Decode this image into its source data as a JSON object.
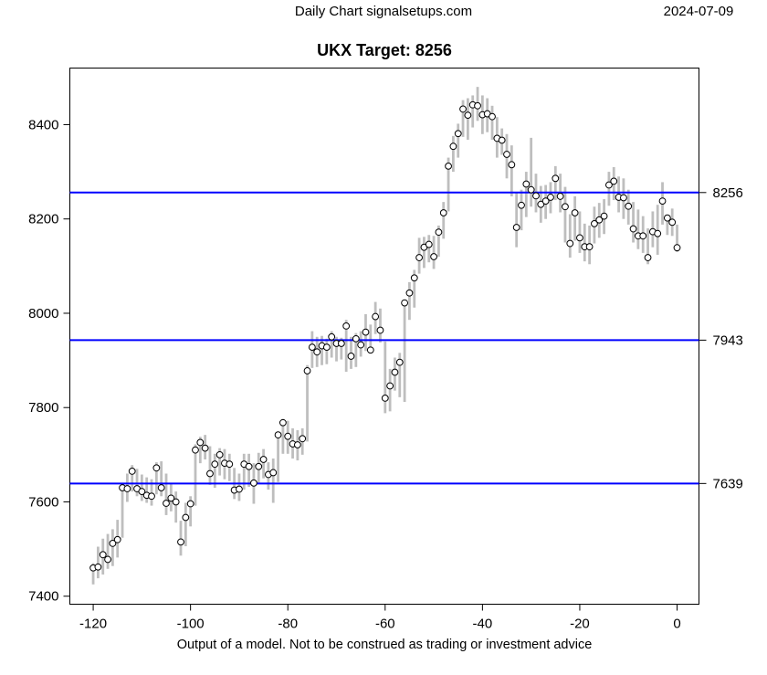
{
  "header": {
    "title": "Daily Chart signalsetups.com",
    "date": "2024-07-09"
  },
  "chart": {
    "title": "UKX Target: 8256",
    "instrument": "UKX",
    "target": "8256"
  },
  "caption": "Output of a model. Not to be construed as trading or investment advice",
  "colors": {
    "bar": "#bebebe",
    "target_line": "#0000ff",
    "marker_fill": "#ffffff",
    "marker_stroke": "#000000",
    "text": "#000000",
    "background": "#ffffff"
  },
  "chart_data": {
    "type": "bar",
    "subtype": "high-low-close-bars",
    "title": "UKX Target: 8256",
    "xlabel": "",
    "ylabel": "",
    "x_start": -120,
    "x_step": 1,
    "x_ticks": [
      -120,
      -100,
      -80,
      -60,
      -40,
      -20,
      0
    ],
    "y_ticks": [
      7400,
      7600,
      7800,
      8000,
      8200,
      8400
    ],
    "xlim": [
      -124.8,
      4.5
    ],
    "ylim": [
      7383,
      8520
    ],
    "grid": false,
    "legend": "none",
    "target_lines": [
      {
        "value": 8256,
        "label": "8256"
      },
      {
        "value": 7943,
        "label": "7943"
      },
      {
        "value": 7639,
        "label": "7639"
      }
    ],
    "series": [
      {
        "name": "high",
        "values": [
          7470,
          7505,
          7522,
          7532,
          7542,
          7562,
          7640,
          7660,
          7678,
          7670,
          7658,
          7652,
          7648,
          7684,
          7686,
          7660,
          7640,
          7622,
          7560,
          7598,
          7612,
          7722,
          7738,
          7742,
          7718,
          7702,
          7714,
          7712,
          7702,
          7672,
          7660,
          7702,
          7702,
          7682,
          7704,
          7712,
          7684,
          7692,
          7748,
          7776,
          7772,
          7756,
          7752,
          7756,
          7890,
          7962,
          7950,
          7952,
          7946,
          7962,
          7950,
          7948,
          7986,
          7950,
          7958,
          7962,
          7998,
          7976,
          8024,
          8010,
          7940,
          7882,
          7906,
          7916,
          8026,
          8066,
          8092,
          8160,
          8162,
          8166,
          8164,
          8186,
          8236,
          8330,
          8376,
          8402,
          8452,
          8456,
          8462,
          8480,
          8462,
          8456,
          8440,
          8416,
          8392,
          8380,
          8356,
          8256,
          8262,
          8300,
          8372,
          8296,
          8270,
          8272,
          8278,
          8312,
          8296,
          8268,
          8210,
          8248,
          8216,
          8190,
          8186,
          8226,
          8234,
          8242,
          8300,
          8310,
          8290,
          8286,
          8262,
          8236,
          8220,
          8206,
          8180,
          8216,
          8230,
          8278,
          8208,
          8222,
          8188
        ]
      },
      {
        "name": "low",
        "values": [
          7425,
          7438,
          7446,
          7458,
          7464,
          7482,
          7524,
          7600,
          7622,
          7612,
          7602,
          7598,
          7592,
          7616,
          7612,
          7572,
          7580,
          7556,
          7486,
          7506,
          7548,
          7592,
          7682,
          7690,
          7636,
          7630,
          7656,
          7648,
          7644,
          7606,
          7602,
          7626,
          7632,
          7596,
          7638,
          7650,
          7626,
          7598,
          7642,
          7702,
          7702,
          7692,
          7688,
          7700,
          7728,
          7884,
          7886,
          7890,
          7892,
          7906,
          7898,
          7902,
          7876,
          7882,
          7886,
          7908,
          7920,
          7918,
          7956,
          7938,
          7788,
          7792,
          7836,
          7822,
          7812,
          7986,
          8012,
          8084,
          8096,
          8108,
          8094,
          8120,
          8158,
          8216,
          8300,
          8330,
          8374,
          8368,
          8394,
          8408,
          8380,
          8384,
          8368,
          8330,
          8336,
          8286,
          8248,
          8140,
          8176,
          8204,
          8226,
          8214,
          8192,
          8200,
          8212,
          8240,
          8214,
          8150,
          8118,
          8154,
          8128,
          8110,
          8104,
          8148,
          8160,
          8168,
          8228,
          8240,
          8214,
          8200,
          8188,
          8150,
          8136,
          8128,
          8104,
          8140,
          8124,
          8188,
          8166,
          8164,
          8130
        ]
      },
      {
        "name": "close",
        "values": [
          7460,
          7462,
          7488,
          7478,
          7512,
          7520,
          7630,
          7628,
          7665,
          7628,
          7622,
          7614,
          7612,
          7672,
          7630,
          7597,
          7608,
          7600,
          7515,
          7567,
          7596,
          7710,
          7726,
          7714,
          7660,
          7680,
          7700,
          7682,
          7680,
          7625,
          7627,
          7680,
          7675,
          7640,
          7675,
          7690,
          7658,
          7662,
          7742,
          7768,
          7739,
          7723,
          7721,
          7734,
          7878,
          7928,
          7918,
          7931,
          7928,
          7950,
          7936,
          7936,
          7973,
          7909,
          7946,
          7933,
          7960,
          7922,
          7993,
          7964,
          7820,
          7846,
          7875,
          7896,
          8022,
          8043,
          8075,
          8118,
          8140,
          8146,
          8120,
          8172,
          8213,
          8312,
          8354,
          8381,
          8433,
          8420,
          8442,
          8440,
          8421,
          8423,
          8417,
          8371,
          8367,
          8337,
          8315,
          8182,
          8229,
          8274,
          8262,
          8249,
          8231,
          8238,
          8246,
          8286,
          8248,
          8226,
          8148,
          8213,
          8160,
          8141,
          8141,
          8190,
          8198,
          8206,
          8272,
          8280,
          8246,
          8245,
          8227,
          8179,
          8164,
          8164,
          8118,
          8173,
          8169,
          8238,
          8202,
          8193,
          8139
        ]
      }
    ]
  }
}
